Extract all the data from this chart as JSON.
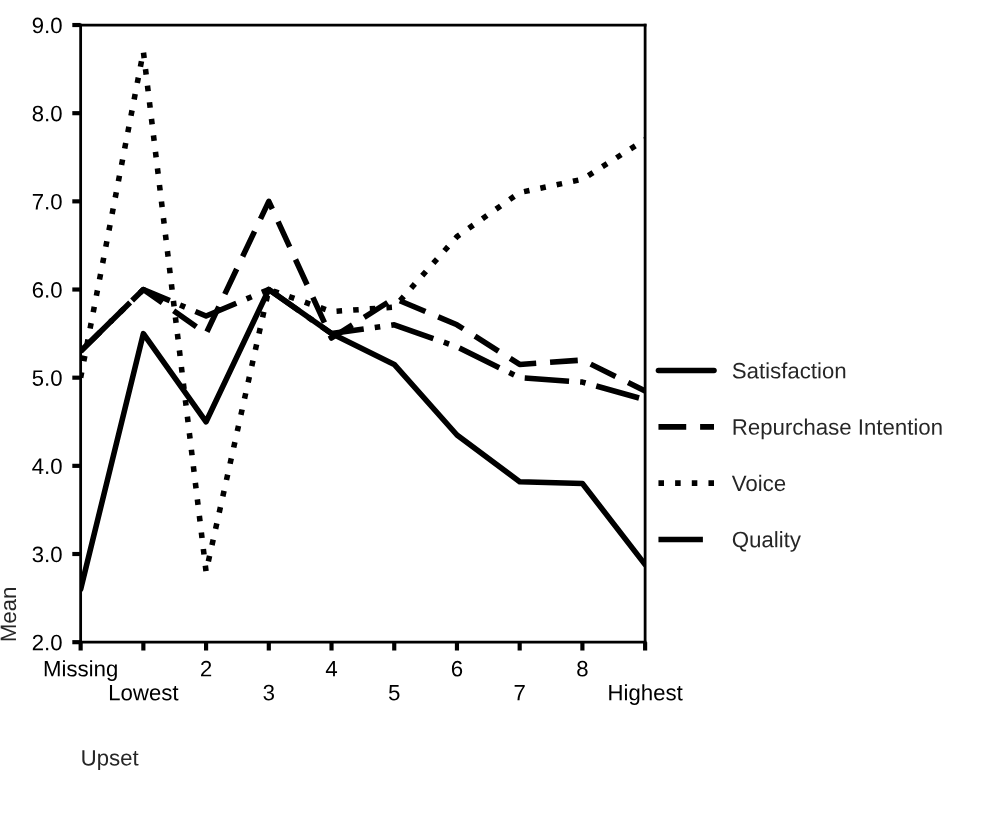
{
  "chart_data": {
    "type": "line",
    "xlabel": "Upset",
    "ylabel": "Mean",
    "categories": [
      "Missing",
      "Lowest",
      "2",
      "3",
      "4",
      "5",
      "6",
      "7",
      "8",
      "Highest"
    ],
    "ylim": [
      2.0,
      9.0
    ],
    "yticks": [
      {
        "value": 2,
        "label": "2.0"
      },
      {
        "value": 3,
        "label": "3.0"
      },
      {
        "value": 4,
        "label": "4.0"
      },
      {
        "value": 5,
        "label": "5.0"
      },
      {
        "value": 6,
        "label": "6.0"
      },
      {
        "value": 7,
        "label": "7.0"
      },
      {
        "value": 8,
        "label": "8.0"
      },
      {
        "value": 9,
        "label": "9.0"
      }
    ],
    "grid": false,
    "legend": "right",
    "marker": "none",
    "series": [
      {
        "name": "Satisfaction",
        "color": "#000000",
        "line_style": "solid",
        "values": [
          2.6,
          5.5,
          4.5,
          6.0,
          5.5,
          5.15,
          4.35,
          3.82,
          3.8,
          2.88
        ]
      },
      {
        "name": "Repurchase Intention",
        "color": "#000000",
        "line_style": "dashed",
        "values": [
          5.3,
          6.0,
          5.5,
          7.0,
          5.45,
          5.9,
          5.6,
          5.15,
          5.2,
          4.85
        ]
      },
      {
        "name": "Voice",
        "color": "#000000",
        "line_style": "dotted",
        "values": [
          5.0,
          8.7,
          2.8,
          6.0,
          5.75,
          5.8,
          6.6,
          7.1,
          7.25,
          7.7
        ]
      },
      {
        "name": "Quality",
        "color": "#000000",
        "line_style": "dashdot",
        "values": [
          5.3,
          6.0,
          5.7,
          6.0,
          5.5,
          5.6,
          5.35,
          5.0,
          4.95,
          4.75
        ]
      }
    ]
  }
}
